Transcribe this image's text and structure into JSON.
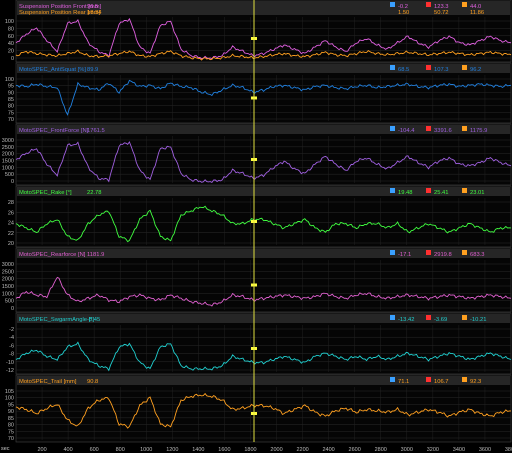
{
  "app": {
    "corner_label": "sec"
  },
  "chart_data": [
    {
      "type": "line",
      "xlim": [
        0,
        3800
      ],
      "ylim": [
        0,
        100
      ],
      "yticks": [
        "100",
        "80",
        "60",
        "40",
        "20",
        "0"
      ],
      "series": [
        {
          "name": "Suspension Position Front [mm]",
          "color": "#e060e0",
          "cursor_value": "96.5",
          "stats": [
            "-0.2",
            "123.3",
            "44.0"
          ],
          "values": [
            40,
            60,
            75,
            45,
            20,
            85,
            90,
            40,
            20,
            10,
            85,
            95,
            30,
            15,
            80,
            90,
            25,
            10,
            5,
            5,
            10,
            30,
            20,
            10,
            15,
            25,
            35,
            25,
            15,
            30,
            45,
            30,
            20,
            40,
            50,
            35,
            25,
            40,
            55,
            40,
            30,
            45,
            55,
            40,
            35,
            45,
            55,
            45,
            40
          ]
        },
        {
          "name": "Suspension Position Rear [mm]",
          "color": "#ffa020",
          "cursor_value": "18.34",
          "stats": [
            "1.50",
            "50.72",
            "11.86"
          ],
          "values": [
            10,
            20,
            15,
            12,
            10,
            15,
            20,
            10,
            8,
            10,
            15,
            20,
            10,
            8,
            15,
            20,
            10,
            5,
            3,
            3,
            5,
            10,
            8,
            5,
            8,
            12,
            15,
            10,
            8,
            12,
            18,
            12,
            10,
            15,
            20,
            15,
            12,
            15,
            18,
            15,
            12,
            15,
            18,
            15,
            12,
            15,
            18,
            15,
            12
          ]
        }
      ]
    },
    {
      "type": "line",
      "xlim": [
        0,
        3800
      ],
      "ylim": [
        65,
        105
      ],
      "yticks": [
        "100",
        "95",
        "90",
        "85",
        "80",
        "75",
        "70"
      ],
      "series": [
        {
          "name": "MotoSPEC_AntiSquat [%]",
          "color": "#2080e0",
          "cursor_value": "89.9",
          "stats": [
            "68.5",
            "107.3",
            "96.2"
          ],
          "values": [
            96,
            95,
            97,
            95,
            94,
            70,
            97,
            94,
            92,
            98,
            90,
            100,
            95,
            96,
            93,
            98,
            95,
            94,
            90,
            88,
            92,
            96,
            94,
            90,
            92,
            95,
            96,
            94,
            92,
            95,
            96,
            94,
            93,
            95,
            96,
            94,
            95,
            96,
            97,
            95,
            94,
            96,
            97,
            95,
            96,
            97,
            96,
            95,
            96
          ]
        }
      ]
    },
    {
      "type": "line",
      "xlim": [
        0,
        3800
      ],
      "ylim": [
        0,
        3000
      ],
      "yticks": [
        "3000",
        "2500",
        "2000",
        "1500",
        "1000",
        "500",
        "0"
      ],
      "series": [
        {
          "name": "MotoSPEC_FrontForce [N]",
          "color": "#a060e0",
          "cursor_value": "1761.5",
          "stats": [
            "-104.4",
            "3391.6",
            "1175.9"
          ],
          "values": [
            1500,
            1900,
            2200,
            1200,
            500,
            2400,
            2500,
            1000,
            300,
            200,
            2400,
            2600,
            800,
            200,
            2200,
            2300,
            600,
            200,
            100,
            100,
            200,
            800,
            600,
            300,
            500,
            1000,
            1400,
            900,
            600,
            1200,
            1700,
            1200,
            800,
            1400,
            1600,
            1200,
            900,
            1300,
            1700,
            1300,
            1000,
            1400,
            1600,
            1200,
            1100,
            1300,
            1600,
            1300,
            1100
          ]
        }
      ]
    },
    {
      "type": "line",
      "xlim": [
        0,
        3800
      ],
      "ylim": [
        19,
        30
      ],
      "yticks": [
        "28",
        "26",
        "24",
        "22",
        "20"
      ],
      "series": [
        {
          "name": "MotoSPEC_Rake [°]",
          "color": "#40ff40",
          "cursor_value": "22.78",
          "stats": [
            "19.48",
            "25.41",
            "23.01"
          ],
          "values": [
            24,
            23,
            22,
            24,
            25,
            21,
            20,
            24,
            26,
            27,
            21,
            20,
            25,
            27,
            21,
            20,
            26,
            27,
            28,
            27,
            26,
            24,
            24,
            25,
            25,
            24,
            23,
            24,
            25,
            23,
            22,
            24,
            24,
            23,
            24,
            24,
            23,
            24,
            22,
            23,
            24,
            23,
            22,
            23,
            24,
            23,
            22,
            23,
            23
          ]
        }
      ]
    },
    {
      "type": "line",
      "xlim": [
        0,
        3800
      ],
      "ylim": [
        0,
        3000
      ],
      "yticks": [
        "3000",
        "2500",
        "2000",
        "1500",
        "1000",
        "500",
        "0"
      ],
      "series": [
        {
          "name": "MotoSPEC_Rearforce [N]",
          "color": "#e060d0",
          "cursor_value": "1181.9",
          "stats": [
            "-17.1",
            "2919.8",
            "683.3"
          ],
          "values": [
            700,
            1100,
            900,
            800,
            2000,
            900,
            500,
            700,
            900,
            600,
            500,
            800,
            900,
            700,
            600,
            900,
            700,
            500,
            400,
            300,
            500,
            900,
            800,
            600,
            700,
            800,
            900,
            800,
            700,
            800,
            1000,
            800,
            700,
            900,
            1000,
            800,
            700,
            800,
            900,
            800,
            700,
            800,
            900,
            800,
            700,
            800,
            900,
            800,
            700
          ]
        }
      ]
    },
    {
      "type": "line",
      "xlim": [
        0,
        3800
      ],
      "ylim": [
        -13,
        2
      ],
      "yticks": [
        "-2",
        "-4",
        "-6",
        "-8",
        "-10",
        "-12"
      ],
      "series": [
        {
          "name": "MotoSPEC_SwgarmAngle [°]",
          "color": "#20d0d0",
          "cursor_value": "-8.45",
          "stats": [
            "-13.42",
            "-3.69",
            "-10.21"
          ],
          "values": [
            -9,
            -7,
            -6,
            -8,
            -9,
            -5,
            -4,
            -9,
            -11,
            -12,
            -5,
            -4,
            -10,
            -12,
            -5,
            -4,
            -11,
            -12,
            -12,
            -12,
            -11,
            -8,
            -9,
            -10,
            -10,
            -9,
            -8,
            -9,
            -10,
            -8,
            -7,
            -8,
            -9,
            -8,
            -9,
            -8,
            -9,
            -8,
            -7,
            -8,
            -9,
            -8,
            -7,
            -8,
            -9,
            -8,
            -7,
            -8,
            -9
          ]
        }
      ]
    },
    {
      "type": "line",
      "xlim": [
        0,
        3800
      ],
      "xticks": [
        "200",
        "400",
        "600",
        "800",
        "1000",
        "1200",
        "1400",
        "1600",
        "1800",
        "2000",
        "2200",
        "2400",
        "2600",
        "2800",
        "3000",
        "3200",
        "3400",
        "3600",
        "3800"
      ],
      "ylim": [
        70,
        110
      ],
      "yticks": [
        "105",
        "100",
        "95",
        "90",
        "85",
        "80",
        "75",
        "70"
      ],
      "series": [
        {
          "name": "MotoSPEC_Trail [mm]",
          "color": "#ffa020",
          "cursor_value": "90.8",
          "stats": [
            "71.1",
            "106.7",
            "92.3"
          ],
          "values": [
            95,
            93,
            90,
            94,
            97,
            85,
            80,
            94,
            100,
            102,
            82,
            80,
            96,
            102,
            82,
            80,
            100,
            103,
            104,
            103,
            100,
            93,
            94,
            96,
            96,
            94,
            90,
            93,
            96,
            91,
            88,
            92,
            94,
            91,
            93,
            92,
            91,
            93,
            89,
            91,
            93,
            91,
            88,
            91,
            93,
            90,
            88,
            91,
            92
          ]
        }
      ]
    }
  ]
}
